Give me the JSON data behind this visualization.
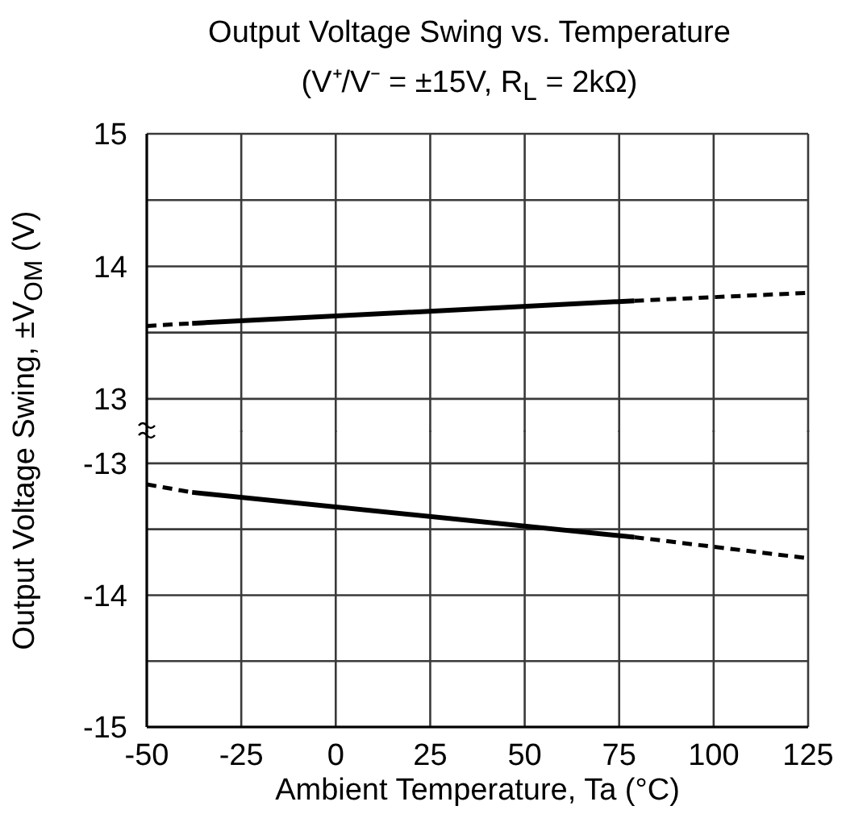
{
  "chart_data": [
    {
      "type": "line",
      "title": "Output Voltage Swing vs. Temperature",
      "subtitle": "(V⁺/V⁻ = ±15V, R$_{L}$ = 2kΩ)",
      "ylabel": "Output Voltage Swing, ±V$_{OM}$ (V)",
      "xlim": [
        -50,
        125
      ],
      "xticks": [
        -50,
        -25,
        0,
        25,
        50,
        75,
        100,
        125
      ],
      "ylim": [
        12.75,
        15
      ],
      "yticks": [
        13,
        {
          "value": 13.5,
          "label": null
        },
        14,
        {
          "value": 14.5,
          "label": null
        },
        15
      ],
      "tick_labels": "y",
      "grid": true,
      "marker": "none",
      "series": [
        {
          "color": "#000000",
          "line_style": "dashed",
          "x": [
            -50,
            -38
          ],
          "values": [
            13.55,
            13.57
          ]
        },
        {
          "color": "#000000",
          "line_style": "solid",
          "x": [
            -38,
            79
          ],
          "values": [
            13.57,
            13.74
          ]
        },
        {
          "color": "#000000",
          "line_style": "dashed",
          "x": [
            79,
            125
          ],
          "values": [
            13.74,
            13.8
          ]
        }
      ]
    },
    {
      "type": "line",
      "xlabel": "Ambient Temperature, Ta (°C)",
      "xlim": [
        -50,
        125
      ],
      "xticks": [
        -50,
        -25,
        0,
        25,
        50,
        75,
        100,
        125
      ],
      "ylim": [
        -15,
        -12.75
      ],
      "yticks": [
        -15,
        {
          "value": -14.5,
          "label": null
        },
        -14,
        {
          "value": -13.5,
          "label": null
        },
        -13
      ],
      "grid": true,
      "marker": "none",
      "series": [
        {
          "color": "#000000",
          "line_style": "dashed",
          "x": [
            -50,
            -38
          ],
          "values": [
            -13.16,
            -13.22
          ]
        },
        {
          "color": "#000000",
          "line_style": "solid",
          "x": [
            -38,
            79
          ],
          "values": [
            -13.22,
            -13.56
          ]
        },
        {
          "color": "#000000",
          "line_style": "dashed",
          "x": [
            79,
            125
          ],
          "values": [
            -13.56,
            -13.72
          ]
        }
      ]
    }
  ]
}
